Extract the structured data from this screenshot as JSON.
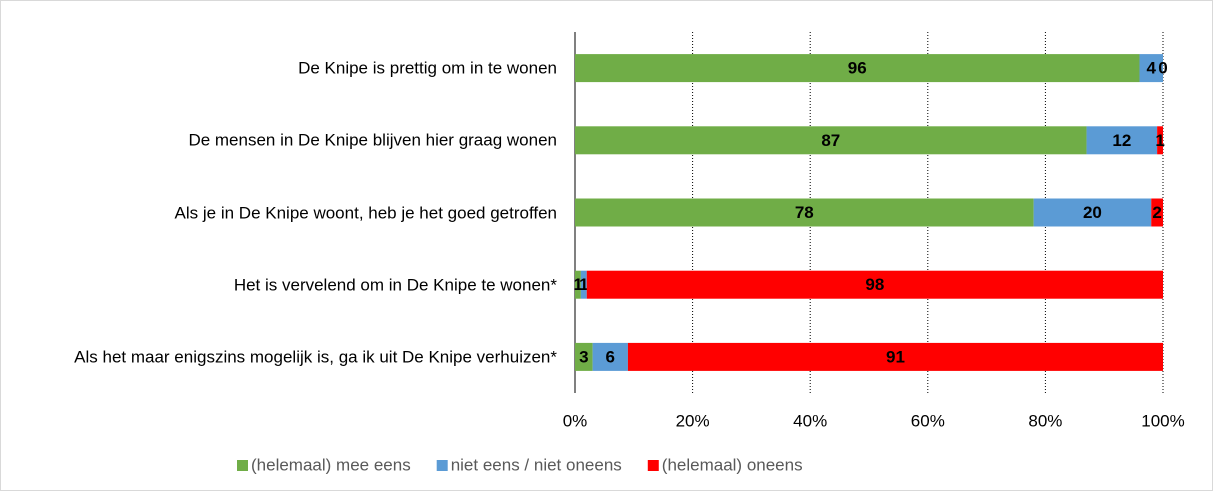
{
  "chart_data": {
    "type": "stacked_barh",
    "categories": [
      "De Knipe is prettig om in te wonen",
      "De mensen in De Knipe blijven hier graag wonen",
      "Als je in De Knipe woont, heb je het goed getroffen",
      "Het is vervelend om in De Knipe te wonen*",
      "Als het maar enigszins mogelijk is, ga ik uit De Knipe verhuizen*"
    ],
    "series": [
      {
        "name": "(helemaal) mee eens",
        "color": "#70ad47",
        "values": [
          96,
          87,
          78,
          1,
          3
        ]
      },
      {
        "name": "niet eens / niet oneens",
        "color": "#5b9bd5",
        "values": [
          4,
          12,
          20,
          1,
          6
        ]
      },
      {
        "name": "(helemaal) oneens",
        "color": "#ff0000",
        "values": [
          0,
          1,
          2,
          98,
          91
        ]
      }
    ],
    "xlim": [
      0,
      100
    ],
    "xticks": [
      {
        "value": 0,
        "label": "0%"
      },
      {
        "value": 20,
        "label": "20%"
      },
      {
        "value": 40,
        "label": "40%"
      },
      {
        "value": 60,
        "label": "60%"
      },
      {
        "value": 80,
        "label": "80%"
      },
      {
        "value": 100,
        "label": "100%"
      }
    ],
    "grid": true,
    "legend": "bottom"
  }
}
